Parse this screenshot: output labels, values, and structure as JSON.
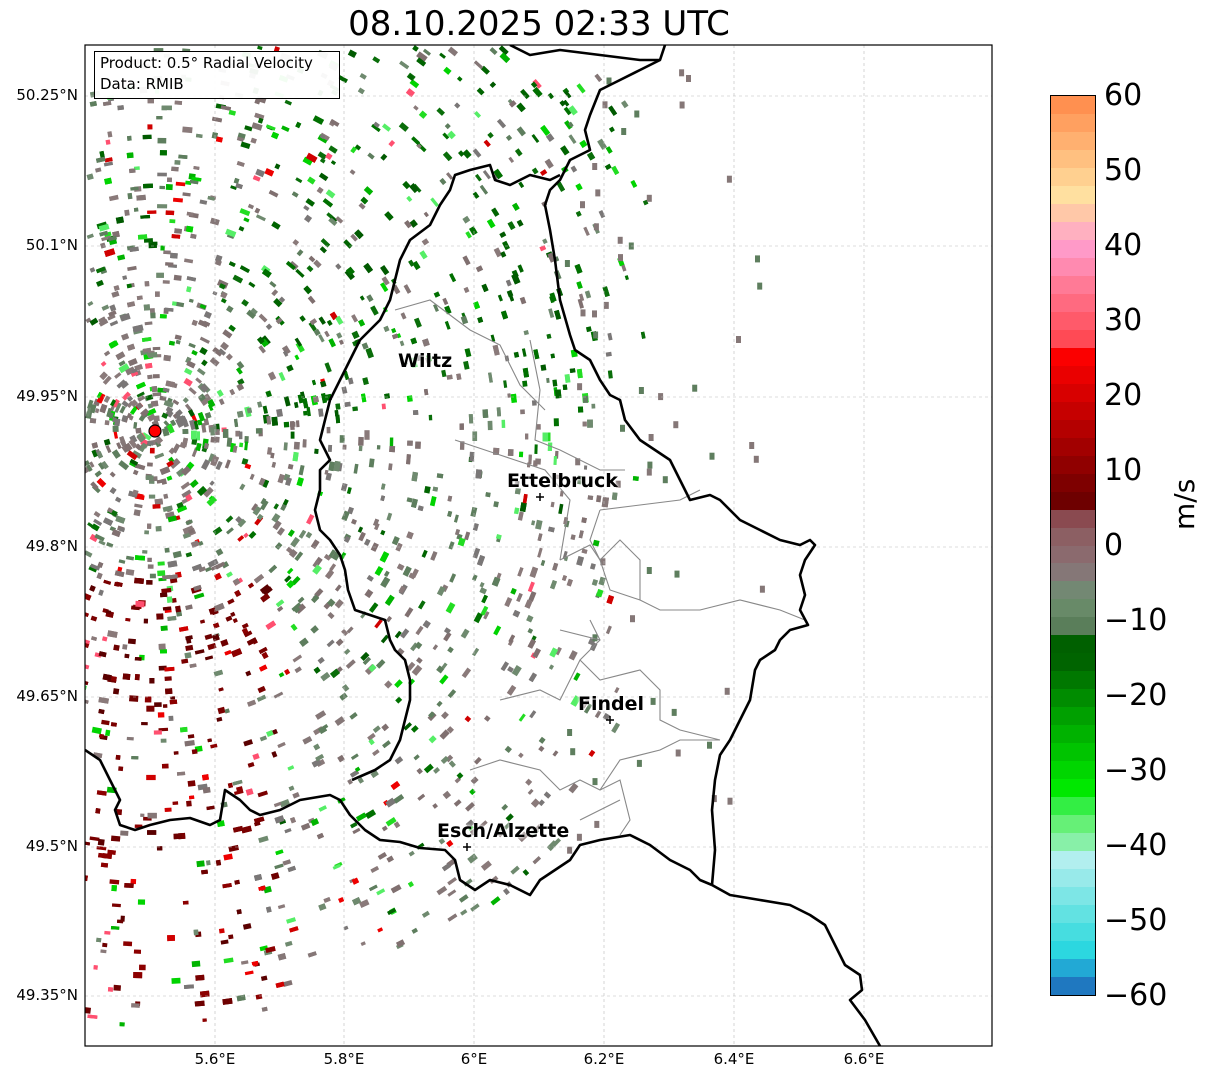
{
  "title": "08.10.2025 02:33 UTC",
  "info": {
    "product": "Product: 0.5° Radial Velocity",
    "data_source": "Data: RMIB"
  },
  "axes": {
    "lat_ticks": [
      "50.25°N",
      "50.1°N",
      "49.95°N",
      "49.8°N",
      "49.65°N",
      "49.5°N",
      "49.35°N"
    ],
    "lon_ticks": [
      "5.6°E",
      "5.8°E",
      "6°E",
      "6.2°E",
      "6.4°E",
      "6.6°E"
    ]
  },
  "cities": [
    {
      "name": "Wiltz"
    },
    {
      "name": "Ettelbruck"
    },
    {
      "name": "Findel"
    },
    {
      "name": "Esch/Alzette"
    }
  ],
  "radar_site": {
    "color": "#ff0000"
  },
  "colorbar": {
    "ticks": [
      "60",
      "50",
      "40",
      "30",
      "20",
      "10",
      "0",
      "−10",
      "−20",
      "−30",
      "−40",
      "−50",
      "−60"
    ],
    "unit": "m/s",
    "min": -60,
    "max": 60,
    "colors_bottom_to_top": [
      "#1f78c0",
      "#22a9d5",
      "#2cd7e0",
      "#46dde0",
      "#62e2e2",
      "#7de6e6",
      "#98eaea",
      "#b2efef",
      "#88f0a8",
      "#66f077",
      "#33ee44",
      "#00e800",
      "#00d600",
      "#00c400",
      "#00b200",
      "#00a000",
      "#008c00",
      "#007800",
      "#006400",
      "#006000",
      "#5a7e5a",
      "#688a68",
      "#738873",
      "#857777",
      "#8b6a6e",
      "#8c5f63",
      "#8a4a50",
      "#6e0000",
      "#7e0000",
      "#900000",
      "#a20000",
      "#b40000",
      "#c60000",
      "#d80000",
      "#ea0000",
      "#fb0000",
      "#ff4a55",
      "#ff5a6a",
      "#ff6a80",
      "#ff7a96",
      "#ff8ab0",
      "#ff9ac8",
      "#ffb0c0",
      "#ffc8a8",
      "#ffe0a0",
      "#ffd090",
      "#ffc080",
      "#ffb070",
      "#ffa060",
      "#ff9050"
    ]
  }
}
